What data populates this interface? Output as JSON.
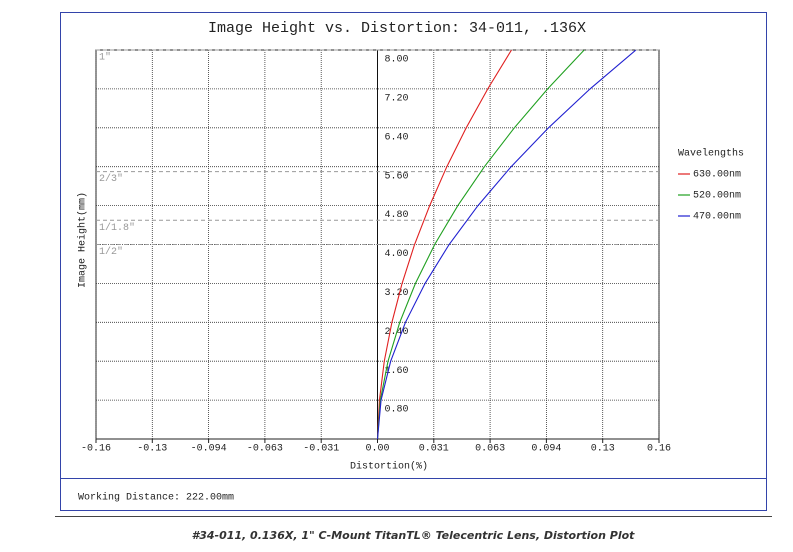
{
  "chart_data": {
    "type": "line",
    "title": "Image Height vs. Distortion: 34-011, .136X",
    "x_label": "Distortion(%)",
    "y_label": "Image Height(mm)",
    "xlim": [
      -0.158,
      0.158
    ],
    "ylim": [
      0,
      8
    ],
    "xticks": [
      {
        "value": -0.158,
        "label": "-0.16"
      },
      {
        "value": -0.1264,
        "label": "-0.13"
      },
      {
        "value": -0.0948,
        "label": "-0.094"
      },
      {
        "value": -0.0632,
        "label": "-0.063"
      },
      {
        "value": -0.0316,
        "label": "-0.031"
      },
      {
        "value": 0,
        "label": "0.00"
      },
      {
        "value": 0.0316,
        "label": "0.031"
      },
      {
        "value": 0.0632,
        "label": "0.063"
      },
      {
        "value": 0.0948,
        "label": "0.094"
      },
      {
        "value": 0.1264,
        "label": "0.13"
      },
      {
        "value": 0.158,
        "label": "0.16"
      }
    ],
    "yticks": [
      {
        "value": 0.8,
        "label": "0.80"
      },
      {
        "value": 1.6,
        "label": "1.60"
      },
      {
        "value": 2.4,
        "label": "2.40"
      },
      {
        "value": 3.2,
        "label": "3.20"
      },
      {
        "value": 4,
        "label": "4.00"
      },
      {
        "value": 4.8,
        "label": "4.80"
      },
      {
        "value": 5.6,
        "label": "5.60"
      },
      {
        "value": 6.4,
        "label": "6.40"
      },
      {
        "value": 7.2,
        "label": "7.20"
      },
      {
        "value": 8,
        "label": "8.00"
      }
    ],
    "grid": true,
    "sensors": [
      {
        "label": "1\"",
        "value": 8.0
      },
      {
        "label": "2/3\"",
        "value": 5.5
      },
      {
        "label": "1/1.8\"",
        "value": 4.5
      },
      {
        "label": "1/2\"",
        "value": 4.0
      }
    ],
    "legend_title": "Wavelengths",
    "y": [
      0,
      0.8,
      1.6,
      2.4,
      3.2,
      4.0,
      4.8,
      5.6,
      6.4,
      7.2,
      8.0
    ],
    "series": [
      {
        "name": "630.00nm",
        "color": "#e02020",
        "x": [
          0,
          0.0011,
          0.0038,
          0.0081,
          0.0138,
          0.0208,
          0.0293,
          0.0389,
          0.0498,
          0.0619,
          0.0752
        ]
      },
      {
        "name": "520.00nm",
        "color": "#20a020",
        "x": [
          0,
          0.0016,
          0.0059,
          0.0125,
          0.0213,
          0.0321,
          0.0451,
          0.06,
          0.0768,
          0.0955,
          0.116
        ]
      },
      {
        "name": "470.00nm",
        "color": "#2020d0",
        "x": [
          0,
          0.002,
          0.0074,
          0.0157,
          0.0267,
          0.0402,
          0.0564,
          0.075,
          0.096,
          0.1193,
          0.145
        ]
      }
    ],
    "footer": "Working Distance: 222.00mm"
  },
  "caption": "#34-011, 0.136X, 1\" C-Mount TitanTL® Telecentric Lens, Distortion Plot"
}
